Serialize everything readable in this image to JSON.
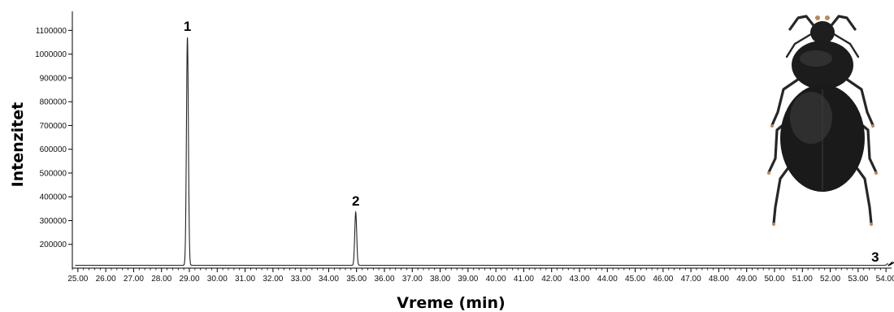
{
  "chart_data": {
    "type": "line",
    "title": "",
    "xlabel": "Vreme (min)",
    "ylabel": "Intenzitet",
    "xlim": [
      24.8,
      54.2
    ],
    "ylim": [
      100000,
      1180000
    ],
    "x_ticks": [
      "25.00",
      "26.00",
      "27.00",
      "28.00",
      "29.00",
      "30.00",
      "31.00",
      "32.00",
      "33.00",
      "34.00",
      "35.00",
      "36.00",
      "37.00",
      "38.00",
      "39.00",
      "40.00",
      "41.00",
      "42.00",
      "43.00",
      "44.00",
      "45.00",
      "46.00",
      "47.00",
      "48.00",
      "49.00",
      "50.00",
      "51.00",
      "52.00",
      "53.00",
      "54.00"
    ],
    "y_ticks": [
      "200000",
      "300000",
      "400000",
      "500000",
      "600000",
      "700000",
      "800000",
      "900000",
      "1000000",
      "1100000"
    ],
    "baseline": 112000,
    "grid": false,
    "peaks": [
      {
        "label": "1",
        "x": 28.93,
        "height": 1070000,
        "width": 0.035
      },
      {
        "label": "2",
        "x": 34.97,
        "height": 335000,
        "width": 0.035
      },
      {
        "label": "3",
        "x": 54.05,
        "height": 118000,
        "width": 0.03
      }
    ],
    "peak_3_arrow": true
  },
  "image": {
    "subject": "beetle-photo",
    "colors": {
      "body": "#1c1c1c",
      "highlight": "#5a5a5a",
      "legs": "#2a2a2a",
      "tips": "#b98a5a"
    }
  }
}
